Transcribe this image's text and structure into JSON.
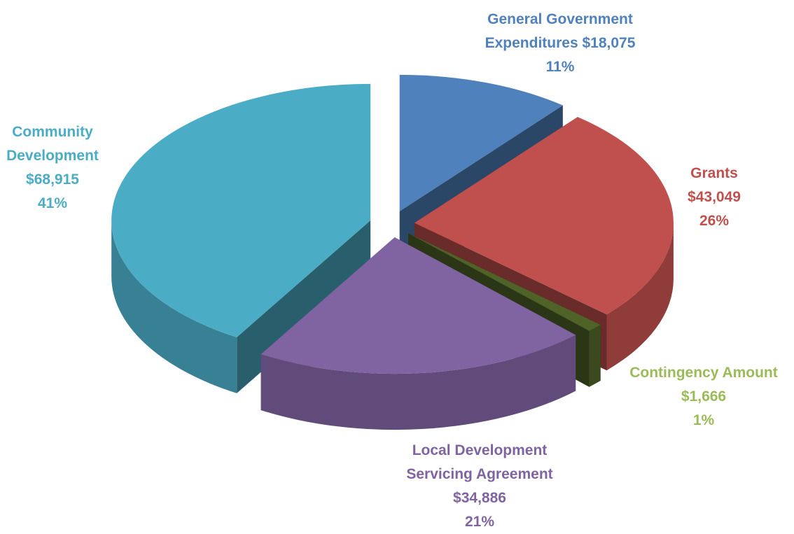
{
  "chart_data": {
    "type": "pie3d",
    "categories": [
      "General Government Expenditures",
      "Grants",
      "Contingency Amount",
      "Local Development Servicing Agreement",
      "Community Development"
    ],
    "values": [
      18075,
      43049,
      1666,
      34886,
      68915
    ],
    "value_labels": [
      "$18,075",
      "$43,049",
      "$1,666",
      "$34,886",
      "$68,915"
    ],
    "percent_labels": [
      "11%",
      "26%",
      "1%",
      "21%",
      "41%"
    ],
    "colors": [
      "#4f81bd",
      "#c0504d",
      "#4f6228",
      "#8064a2",
      "#4bacc6"
    ],
    "label_colors": [
      "#4f81bd",
      "#c0504d",
      "#9bbb59",
      "#8064a2",
      "#4bacc6"
    ],
    "exploded": true
  }
}
